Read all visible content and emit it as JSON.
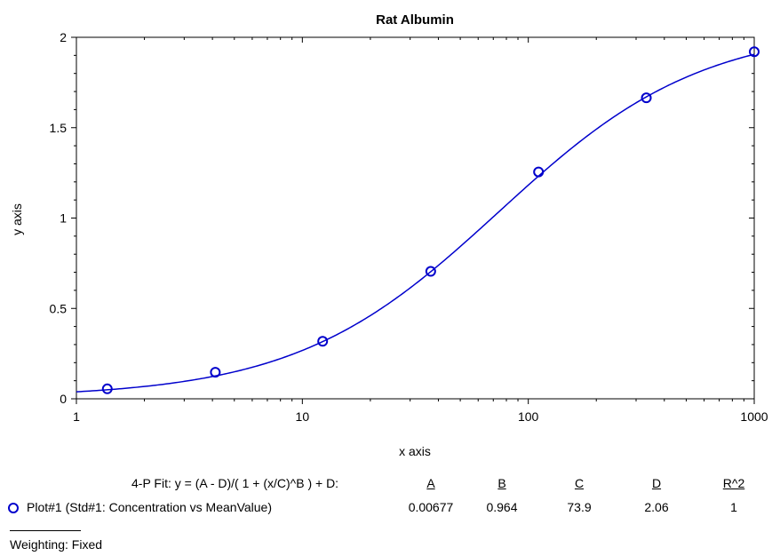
{
  "chart_data": {
    "type": "scatter",
    "title": "Rat Albumin",
    "xlabel": "x axis",
    "ylabel": "y axis",
    "x_scale": "log",
    "xlim": [
      1,
      1000
    ],
    "ylim": [
      0,
      2
    ],
    "x_ticks": [
      "1",
      "10",
      "100",
      "1000"
    ],
    "y_ticks": [
      "0",
      "0.5",
      "1",
      "1.5",
      "2"
    ],
    "grid": false,
    "colors": {
      "series": "#0000cc",
      "axis": "#000000"
    },
    "series": [
      {
        "name": "Plot#1 (Std#1: Concentration vs MeanValue)",
        "x": [
          1.37,
          4.12,
          12.3,
          37.0,
          111,
          333,
          1000
        ],
        "y": [
          0.055,
          0.147,
          0.318,
          0.705,
          1.255,
          1.665,
          1.92
        ]
      }
    ],
    "fit": {
      "model": "4-P Fit: y = (A - D)/( 1 + (x/C)^B ) + D:",
      "A": 0.00677,
      "B": 0.964,
      "C": 73.9,
      "D": 2.06
    }
  },
  "fit_table": {
    "label": "4-P Fit: y = (A - D)/( 1 + (x/C)^B ) + D:",
    "headers": [
      "A",
      "B",
      "C",
      "D",
      "R^2"
    ],
    "row_label": "Plot#1 (Std#1: Concentration vs MeanValue)",
    "values": [
      "0.00677",
      "0.964",
      "73.9",
      "2.06",
      "1"
    ]
  },
  "weighting": "Weighting: Fixed"
}
